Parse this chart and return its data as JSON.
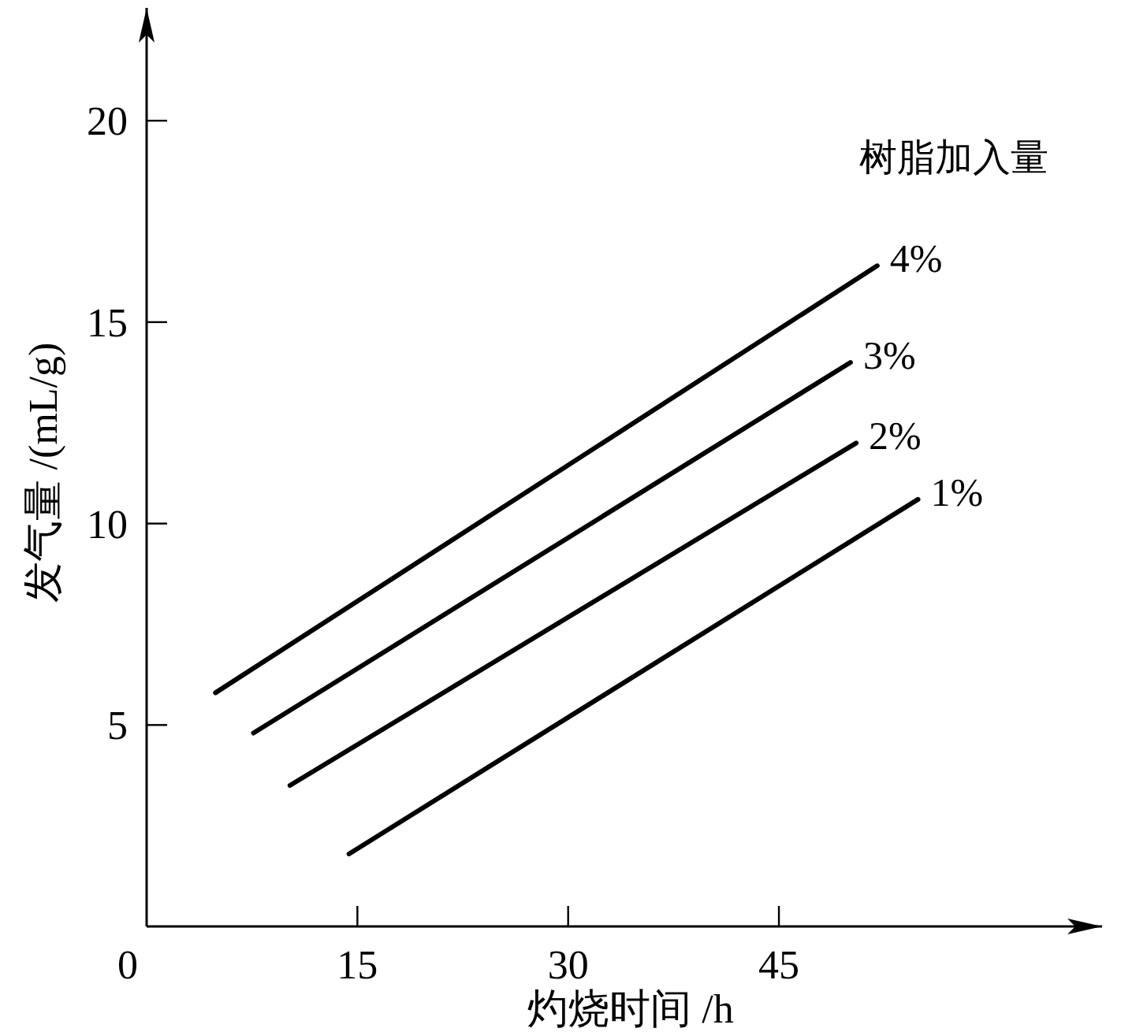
{
  "chart_data": {
    "type": "line",
    "xlabel": "灼烧时间 /h",
    "ylabel": "发气量 /(mL/g)",
    "legend_title": "树脂加入量",
    "xlim": [
      0,
      68
    ],
    "ylim": [
      0,
      22.8
    ],
    "xticks": [
      0,
      15,
      30,
      45
    ],
    "yticks": [
      5,
      10,
      15,
      20
    ],
    "grid": false,
    "legend": false,
    "marker": "none",
    "line_style": "solid",
    "series": [
      {
        "name": "4%",
        "color": "#000000",
        "x": [
          4.9,
          52.0
        ],
        "values": [
          5.8,
          16.4
        ]
      },
      {
        "name": "3%",
        "color": "#000000",
        "x": [
          7.6,
          50.1
        ],
        "values": [
          4.8,
          14.0
        ]
      },
      {
        "name": "2%",
        "color": "#000000",
        "x": [
          10.2,
          50.5
        ],
        "values": [
          3.5,
          12.0
        ]
      },
      {
        "name": "1%",
        "color": "#000000",
        "x": [
          14.4,
          54.9
        ],
        "values": [
          1.8,
          10.6
        ]
      }
    ]
  }
}
